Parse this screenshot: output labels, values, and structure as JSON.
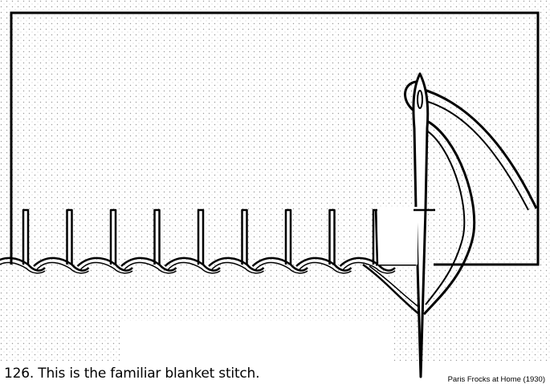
{
  "caption": "126. This is the familiar blanket stitch.",
  "credit": "Paris Frocks at Home (1930)",
  "colors": {
    "ink": "#000000",
    "paper": "#ffffff",
    "halftone": "#8a8a8a"
  },
  "diagram": {
    "subject": "blanket-stitch",
    "stitch_count": 9
  }
}
